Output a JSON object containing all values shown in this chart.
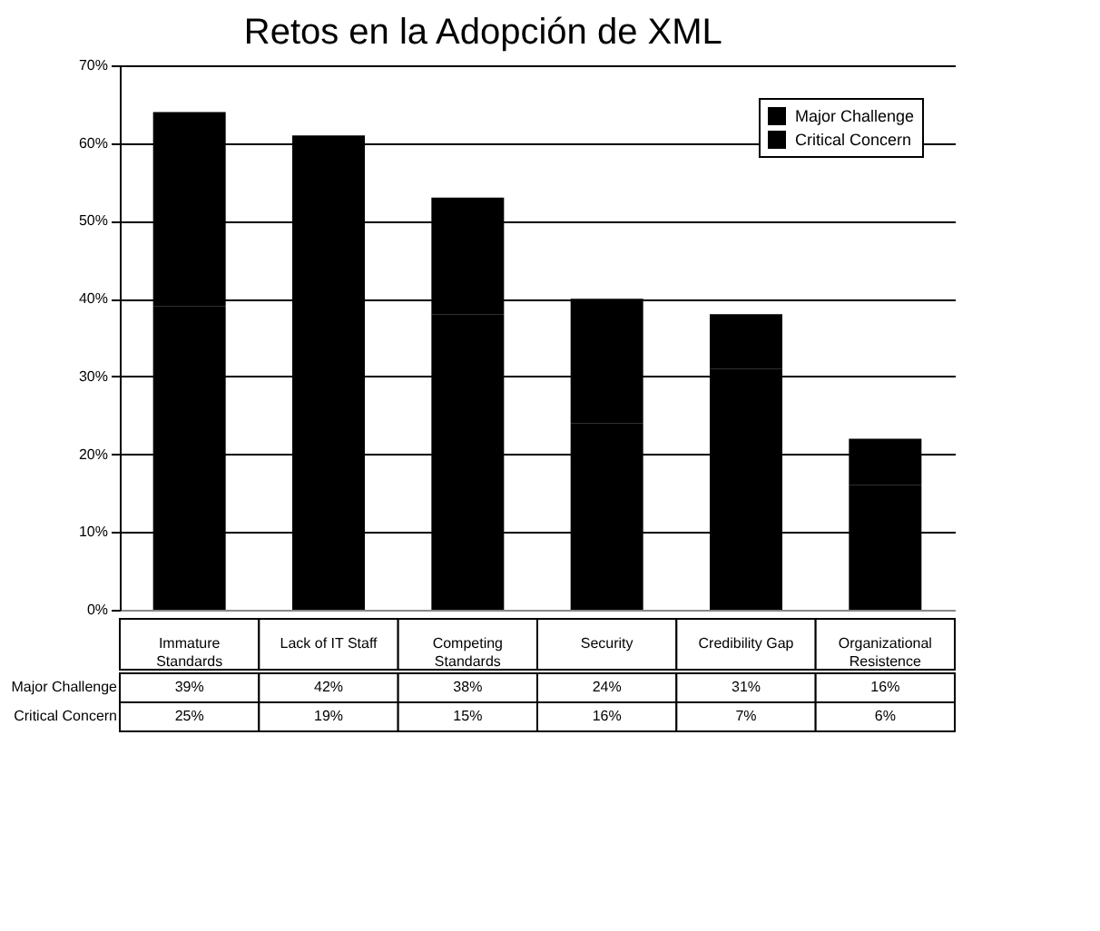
{
  "chart_data": {
    "type": "bar",
    "title": "Retos en la Adopción de XML",
    "stacked": true,
    "legend": "top right",
    "grid": "y",
    "categories": [
      "Immature Standards",
      "Lack of IT Staff",
      "Competing Standards",
      "Security",
      "Credibility Gap",
      "Organizational Resistence"
    ],
    "series": [
      {
        "name": "Major Challenge",
        "color": "#000000",
        "values": [
          39,
          42,
          38,
          24,
          31,
          16
        ],
        "value_labels": [
          "39%",
          "42%",
          "38%",
          "24%",
          "31%",
          "16%"
        ]
      },
      {
        "name": "Critical Concern",
        "color": "#000000",
        "values": [
          25,
          19,
          15,
          16,
          7,
          6
        ],
        "value_labels": [
          "25%",
          "19%",
          "15%",
          "16%",
          "7%",
          "6%"
        ]
      }
    ],
    "ylim": [
      0,
      70
    ],
    "yticks": [
      {
        "value": 0,
        "label": "0%"
      },
      {
        "value": 10,
        "label": "10%"
      },
      {
        "value": 20,
        "label": "20%"
      },
      {
        "value": 30,
        "label": "30%"
      },
      {
        "value": 40,
        "label": "40%"
      },
      {
        "value": 50,
        "label": "50%"
      },
      {
        "value": 60,
        "label": "60%"
      },
      {
        "value": 70,
        "label": "70%"
      }
    ]
  }
}
